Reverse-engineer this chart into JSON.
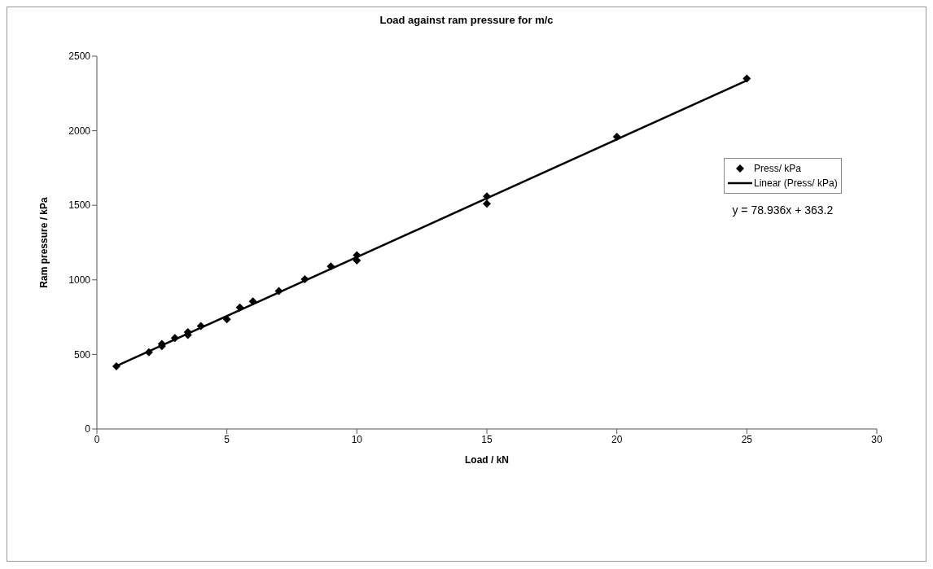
{
  "chart_data": {
    "type": "scatter",
    "title": "Load against ram pressure for m/c",
    "xlabel": "Load / kN",
    "ylabel": "Ram pressure / kPa",
    "xlim": [
      0,
      30
    ],
    "xticks": [
      0,
      5,
      10,
      15,
      20,
      25,
      30
    ],
    "ylim": [
      0,
      2500
    ],
    "yticks": [
      0,
      500,
      1000,
      1500,
      2000,
      2500
    ],
    "grid": false,
    "legend": "right",
    "marker": "diamond",
    "annotations": [
      "y = 78.936x + 363.2"
    ],
    "series": [
      {
        "name": "Press/ kPa",
        "color": "#000000",
        "x": [
          0.75,
          2,
          2.5,
          2.5,
          3,
          3.5,
          3.5,
          4,
          5,
          5.5,
          6,
          7,
          8,
          9,
          10,
          10,
          15,
          15,
          20,
          25
        ],
        "values": [
          420,
          515,
          570,
          555,
          610,
          650,
          630,
          690,
          735,
          815,
          855,
          925,
          1005,
          1090,
          1165,
          1130,
          1560,
          1510,
          1960,
          2350
        ]
      },
      {
        "name": "Linear (Press/ kPa)",
        "type": "line",
        "color": "#000000",
        "line_style": "solid",
        "marker": "none",
        "x": [
          0.75,
          25
        ],
        "values": [
          422,
          2337
        ]
      }
    ]
  }
}
